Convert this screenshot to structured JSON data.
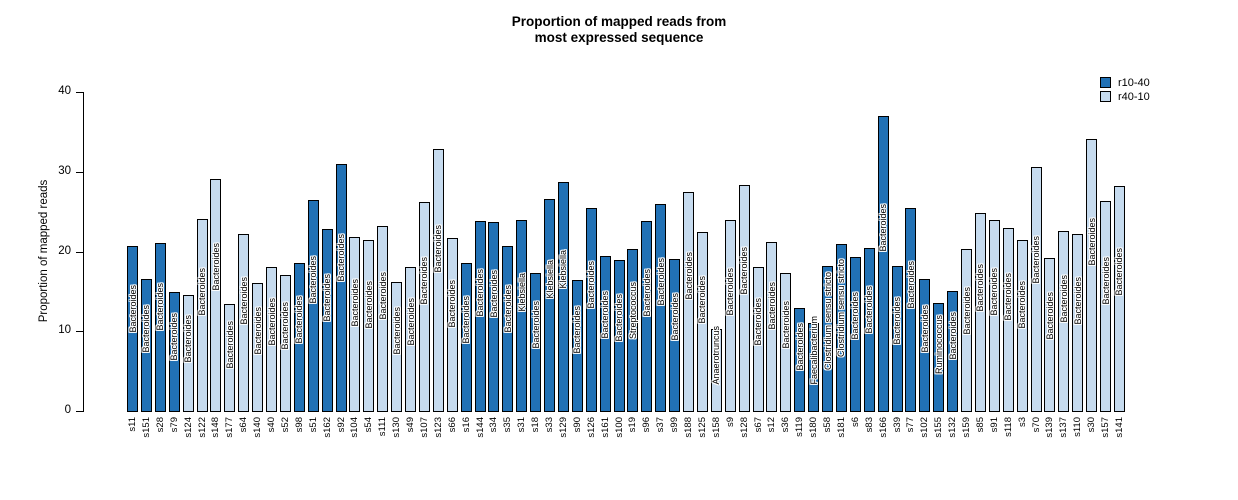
{
  "title": {
    "line1": "Proportion of mapped reads from",
    "line2": "most expressed sequence"
  },
  "y_axis": {
    "label": "Proportion of mapped reads",
    "ticks": [
      0,
      10,
      20,
      30,
      40
    ],
    "max": 40
  },
  "legend": [
    {
      "label": "r10-40",
      "color": "#2171B5"
    },
    {
      "label": "r40-10",
      "color": "#C6DBEF"
    }
  ],
  "chart_data": {
    "type": "bar",
    "title": "Proportion of mapped reads from most expressed sequence",
    "xlabel": "",
    "ylabel": "Proportion of mapped reads",
    "ylim": [
      0,
      40
    ],
    "grid": false,
    "legend_position": "top-right",
    "series_colors": {
      "r10-40": "#2171B5",
      "r40-10": "#C6DBEF"
    },
    "bars": [
      {
        "sample": "s11",
        "value": 20.7,
        "group": "r10-40",
        "taxon": "Bacteroides"
      },
      {
        "sample": "s151",
        "value": 16.6,
        "group": "r10-40",
        "taxon": "Bacteroides"
      },
      {
        "sample": "s28",
        "value": 21.1,
        "group": "r10-40",
        "taxon": "Bacteroides"
      },
      {
        "sample": "s79",
        "value": 14.9,
        "group": "r10-40",
        "taxon": "Bacteroides"
      },
      {
        "sample": "s124",
        "value": 14.5,
        "group": "r40-10",
        "taxon": "Bacteroides"
      },
      {
        "sample": "s122",
        "value": 24.1,
        "group": "r40-10",
        "taxon": "Bacteroides"
      },
      {
        "sample": "s148",
        "value": 29.1,
        "group": "r40-10",
        "taxon": "Bacteroides"
      },
      {
        "sample": "s177",
        "value": 13.4,
        "group": "r40-10",
        "taxon": "Bacteroides"
      },
      {
        "sample": "s64",
        "value": 22.2,
        "group": "r40-10",
        "taxon": "Bacteroides"
      },
      {
        "sample": "s140",
        "value": 16.1,
        "group": "r40-10",
        "taxon": "Bacteroides"
      },
      {
        "sample": "s40",
        "value": 18.0,
        "group": "r40-10",
        "taxon": "Bacteroides"
      },
      {
        "sample": "s52",
        "value": 17.1,
        "group": "r40-10",
        "taxon": "Bacteroides"
      },
      {
        "sample": "s98",
        "value": 18.5,
        "group": "r10-40",
        "taxon": "Bacteroides"
      },
      {
        "sample": "s51",
        "value": 26.5,
        "group": "r10-40",
        "taxon": "Bacteroides"
      },
      {
        "sample": "s162",
        "value": 22.8,
        "group": "r10-40",
        "taxon": "Bacteroides"
      },
      {
        "sample": "s92",
        "value": 31.0,
        "group": "r10-40",
        "taxon": "Bacteroides"
      },
      {
        "sample": "s104",
        "value": 21.8,
        "group": "r40-10",
        "taxon": "Bacteroides"
      },
      {
        "sample": "s54",
        "value": 21.4,
        "group": "r40-10",
        "taxon": "Bacteroides"
      },
      {
        "sample": "s111",
        "value": 23.2,
        "group": "r40-10",
        "taxon": "Bacteroides"
      },
      {
        "sample": "s130",
        "value": 16.2,
        "group": "r40-10",
        "taxon": "Bacteroides"
      },
      {
        "sample": "s49",
        "value": 18.1,
        "group": "r40-10",
        "taxon": "Bacteroides"
      },
      {
        "sample": "s107",
        "value": 26.2,
        "group": "r40-10",
        "taxon": "Bacteroides"
      },
      {
        "sample": "s123",
        "value": 32.8,
        "group": "r40-10",
        "taxon": "Bacteroides"
      },
      {
        "sample": "s66",
        "value": 21.7,
        "group": "r40-10",
        "taxon": "Bacteroides"
      },
      {
        "sample": "s16",
        "value": 18.5,
        "group": "r10-40",
        "taxon": "Bacteroides"
      },
      {
        "sample": "s144",
        "value": 23.8,
        "group": "r10-40",
        "taxon": "Bacteroides"
      },
      {
        "sample": "s34",
        "value": 23.7,
        "group": "r10-40",
        "taxon": "Bacteroides"
      },
      {
        "sample": "s35",
        "value": 20.7,
        "group": "r10-40",
        "taxon": "Bacteroides"
      },
      {
        "sample": "s31",
        "value": 24.0,
        "group": "r10-40",
        "taxon": "Klebsiella"
      },
      {
        "sample": "s18",
        "value": 17.3,
        "group": "r10-40",
        "taxon": "Bacteroides"
      },
      {
        "sample": "s33",
        "value": 26.6,
        "group": "r10-40",
        "taxon": "Klebsiella"
      },
      {
        "sample": "s129",
        "value": 28.7,
        "group": "r10-40",
        "taxon": "Klebsiella"
      },
      {
        "sample": "s90",
        "value": 16.4,
        "group": "r10-40",
        "taxon": "Bacteroides"
      },
      {
        "sample": "s126",
        "value": 25.4,
        "group": "r10-40",
        "taxon": "Bacteroides"
      },
      {
        "sample": "s161",
        "value": 19.4,
        "group": "r10-40",
        "taxon": "Bacteroides"
      },
      {
        "sample": "s100",
        "value": 18.9,
        "group": "r10-40",
        "taxon": "Bacteroides"
      },
      {
        "sample": "s19",
        "value": 20.3,
        "group": "r10-40",
        "taxon": "Streptococcus"
      },
      {
        "sample": "s96",
        "value": 23.8,
        "group": "r10-40",
        "taxon": "Bacteroides"
      },
      {
        "sample": "s37",
        "value": 26.0,
        "group": "r10-40",
        "taxon": "Bacteroides"
      },
      {
        "sample": "s99",
        "value": 19.1,
        "group": "r10-40",
        "taxon": "Bacteroides"
      },
      {
        "sample": "s188",
        "value": 27.4,
        "group": "r40-10",
        "taxon": "Bacteroides"
      },
      {
        "sample": "s125",
        "value": 22.5,
        "group": "r40-10",
        "taxon": "Bacteroides"
      },
      {
        "sample": "s158",
        "value": 10.3,
        "group": "r40-10",
        "taxon": "Anaerotruncus"
      },
      {
        "sample": "s9",
        "value": 24.0,
        "group": "r40-10",
        "taxon": "Bacteroides"
      },
      {
        "sample": "s128",
        "value": 28.4,
        "group": "r40-10",
        "taxon": "Bacteroides"
      },
      {
        "sample": "s67",
        "value": 18.1,
        "group": "r40-10",
        "taxon": "Bacteroides"
      },
      {
        "sample": "s12",
        "value": 21.2,
        "group": "r40-10",
        "taxon": "Bacteroides"
      },
      {
        "sample": "s36",
        "value": 17.3,
        "group": "r40-10",
        "taxon": "Bacteroides"
      },
      {
        "sample": "s119",
        "value": 12.9,
        "group": "r10-40",
        "taxon": "Bacteroides"
      },
      {
        "sample": "s180",
        "value": 11.0,
        "group": "r10-40",
        "taxon": "Faecalibacterium"
      },
      {
        "sample": "s58",
        "value": 18.2,
        "group": "r10-40",
        "taxon": "Clostridium sensu stricto"
      },
      {
        "sample": "s181",
        "value": 20.9,
        "group": "r10-40",
        "taxon": "Clostridium sensu stricto"
      },
      {
        "sample": "s6",
        "value": 19.3,
        "group": "r10-40",
        "taxon": "Bacteroides"
      },
      {
        "sample": "s83",
        "value": 20.5,
        "group": "r10-40",
        "taxon": "Bacteroides"
      },
      {
        "sample": "s166",
        "value": 37.0,
        "group": "r10-40",
        "taxon": "Bacteroides"
      },
      {
        "sample": "s39",
        "value": 18.2,
        "group": "r10-40",
        "taxon": "Bacteroides"
      },
      {
        "sample": "s77",
        "value": 25.4,
        "group": "r10-40",
        "taxon": "Bacteroides"
      },
      {
        "sample": "s102",
        "value": 16.6,
        "group": "r10-40",
        "taxon": "Bacteroides"
      },
      {
        "sample": "s155",
        "value": 13.5,
        "group": "r10-40",
        "taxon": "Ruminococcus"
      },
      {
        "sample": "s132",
        "value": 15.1,
        "group": "r10-40",
        "taxon": "Bacteroides"
      },
      {
        "sample": "s159",
        "value": 20.3,
        "group": "r40-10",
        "taxon": "Bacteroides"
      },
      {
        "sample": "s85",
        "value": 24.8,
        "group": "r40-10",
        "taxon": "Bacteroides"
      },
      {
        "sample": "s91",
        "value": 24.0,
        "group": "r40-10",
        "taxon": "Bacteroides"
      },
      {
        "sample": "s118",
        "value": 23.0,
        "group": "r40-10",
        "taxon": "Bacteroides"
      },
      {
        "sample": "s3",
        "value": 21.5,
        "group": "r40-10",
        "taxon": "Bacteroides"
      },
      {
        "sample": "s70",
        "value": 30.6,
        "group": "r40-10",
        "taxon": "Bacteroides"
      },
      {
        "sample": "s139",
        "value": 19.2,
        "group": "r40-10",
        "taxon": "Bacteroides"
      },
      {
        "sample": "s137",
        "value": 22.6,
        "group": "r40-10",
        "taxon": "Bacteroides"
      },
      {
        "sample": "s110",
        "value": 22.2,
        "group": "r40-10",
        "taxon": "Bacteroides"
      },
      {
        "sample": "s30",
        "value": 34.1,
        "group": "r40-10",
        "taxon": "Bacteroides"
      },
      {
        "sample": "s157",
        "value": 26.3,
        "group": "r40-10",
        "taxon": "Bacteroides"
      },
      {
        "sample": "s141",
        "value": 28.2,
        "group": "r40-10",
        "taxon": "Bacteroides"
      }
    ]
  }
}
